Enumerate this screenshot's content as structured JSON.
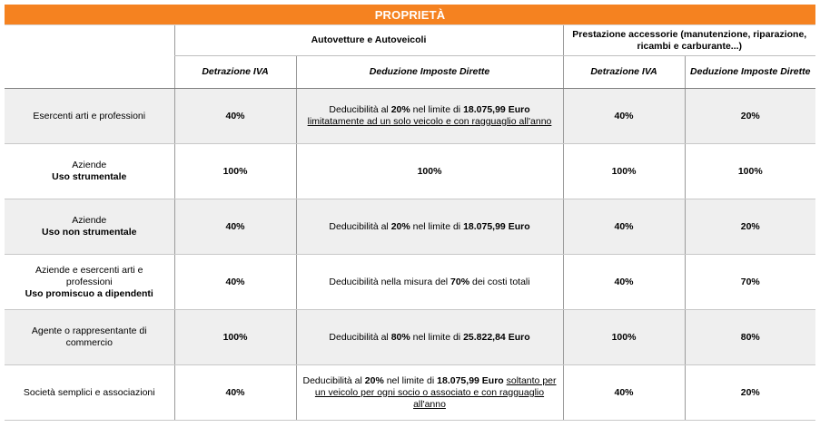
{
  "title": "PROPRIETÀ",
  "group_headers": {
    "autovetture": "Autovetture e Autoveicoli",
    "prestazioni": "Prestazione accessorie (manutenzione, riparazione, ricambi e carburante...)"
  },
  "sub_headers": {
    "detrazione_iva_1": "Detrazione IVA",
    "deduzione_imposte_1": "Deduzione Imposte Dirette",
    "detrazione_iva_2": "Detrazione IVA",
    "deduzione_imposte_2": "Deduzione Imposte Dirette"
  },
  "rows": [
    {
      "label": "Esercenti arti e professioni",
      "label_bold": "",
      "iva": "40%",
      "ded": {
        "pre": "Deducibilità al ",
        "b1": "20%",
        "mid": " nel limite di ",
        "b2": "18.075,99 Euro",
        "u": "limitatamente ad un solo veicolo e con ragguaglio all'anno"
      },
      "iva2": "40%",
      "ded2": "20%"
    },
    {
      "label": "Aziende",
      "label_bold": "Uso strumentale",
      "iva": "100%",
      "ded_simple": "100%",
      "iva2": "100%",
      "ded2": "100%"
    },
    {
      "label": "Aziende",
      "label_bold": "Uso non strumentale",
      "iva": "40%",
      "ded": {
        "pre": "Deducibilità al ",
        "b1": "20%",
        "mid": " nel limite di ",
        "b2": "18.075,99 Euro"
      },
      "iva2": "40%",
      "ded2": "20%"
    },
    {
      "label": "Aziende e esercenti arti e professioni",
      "label_bold": "Uso promiscuo a dipendenti",
      "iva": "40%",
      "ded": {
        "pre": "Deducibilità nella misura del ",
        "b1": "70%",
        "mid": " dei costi totali"
      },
      "iva2": "40%",
      "ded2": "70%"
    },
    {
      "label": "Agente o rappresentante di commercio",
      "label_bold": "",
      "iva": "100%",
      "ded": {
        "pre": "Deducibilità al ",
        "b1": "80%",
        "mid": " nel limite di ",
        "b2": "25.822,84 Euro"
      },
      "iva2": "100%",
      "ded2": "80%"
    },
    {
      "label": "Società semplici e associazioni",
      "label_bold": "",
      "iva": "40%",
      "ded": {
        "pre": "Deducibilità al ",
        "b1": "20%",
        "mid": " nel limite di ",
        "b2": "18.075,99 Euro",
        "u": "soltanto per un veicolo per ogni socio o associato e con ragguaglio all'anno"
      },
      "iva2": "40%",
      "ded2": "20%"
    }
  ]
}
